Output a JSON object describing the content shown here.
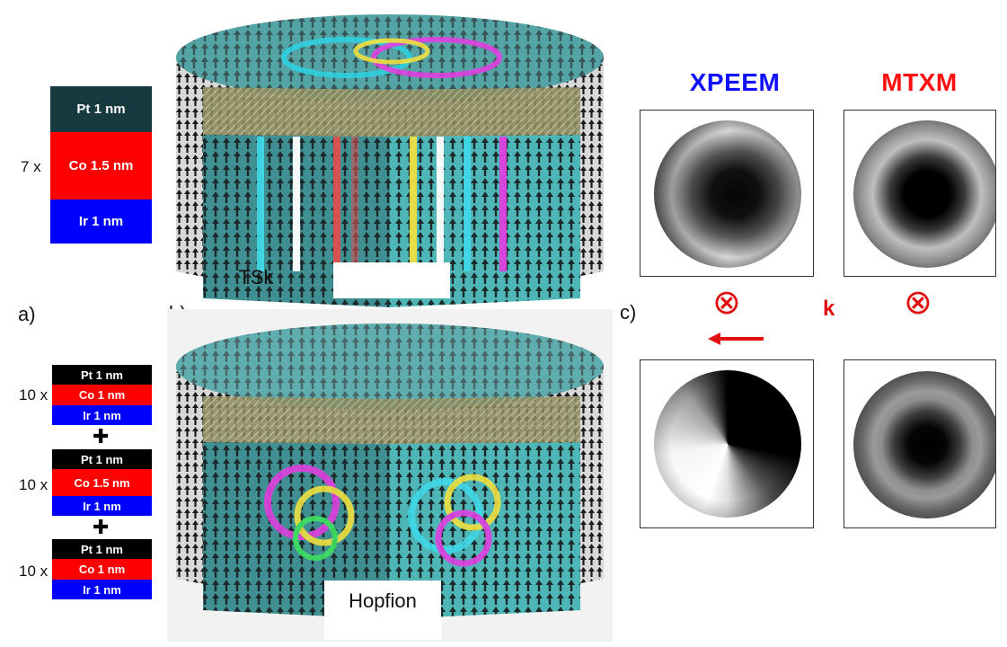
{
  "panels": {
    "a": "a)",
    "b": "b)",
    "c": "c)"
  },
  "stack_tsk": {
    "repeat": "7 x",
    "layers": [
      {
        "label": "Pt 1 nm",
        "color": "#163a40"
      },
      {
        "label": "Co 1.5 nm",
        "color": "#ff0000"
      },
      {
        "label": "Ir 1 nm",
        "color": "#0000ff"
      }
    ]
  },
  "stack_hopfion": {
    "groups": [
      {
        "repeat": "10 x",
        "layers": [
          {
            "label": "Pt 1 nm",
            "color": "#000000"
          },
          {
            "label": "Co 1 nm",
            "color": "#ff0000"
          },
          {
            "label": "Ir 1 nm",
            "color": "#0000ff"
          }
        ]
      },
      {
        "repeat": "10 x",
        "layers": [
          {
            "label": "Pt 1 nm",
            "color": "#000000"
          },
          {
            "label": "Co 1.5 nm",
            "color": "#ff0000"
          },
          {
            "label": "Ir 1 nm",
            "color": "#0000ff"
          }
        ]
      },
      {
        "repeat": "10 x",
        "layers": [
          {
            "label": "Pt 1 nm",
            "color": "#000000"
          },
          {
            "label": "Co 1 nm",
            "color": "#ff0000"
          },
          {
            "label": "Ir 1 nm",
            "color": "#0000ff"
          }
        ]
      }
    ],
    "plus_symbol": "✚"
  },
  "simulations": {
    "top_label": "TSk",
    "bottom_label": "Hopfion",
    "panel_color": "#3f8f93",
    "arrow_color": "#222222"
  },
  "imaging": {
    "xpeem_title": "XPEEM",
    "xpeem_color": "#1010ff",
    "mtxm_title": "MTXM",
    "mtxm_color": "#ff1010",
    "beam_symbol": "⊗",
    "k_label": "k",
    "accent_red": "#e01010"
  }
}
